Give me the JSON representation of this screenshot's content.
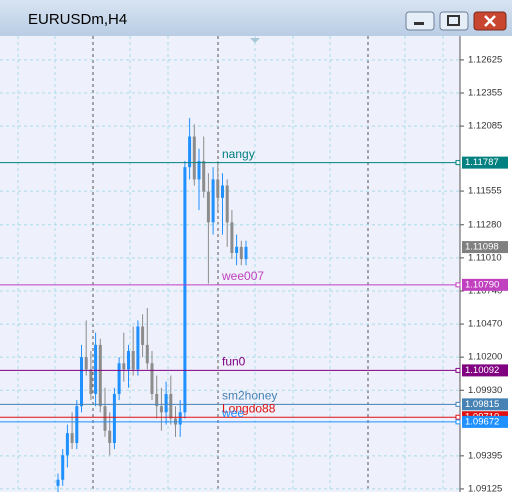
{
  "window": {
    "title": "EURUSDm,H4"
  },
  "chart_data": {
    "type": "candlestick",
    "ylim": [
      1.091,
      1.1282
    ],
    "yticks": [
      1.12625,
      1.12355,
      1.12085,
      1.11555,
      {
        "value": 1.1128,
        "label": "1.11280"
      },
      {
        "value": 1.1101,
        "label": "1.11010"
      },
      {
        "value": 1.1074,
        "label": "1.10740"
      },
      {
        "value": 1.1047,
        "label": "1.10470"
      },
      {
        "value": 1.102,
        "label": "1.10200"
      },
      {
        "value": 1.0993,
        "label": "1.09930"
      },
      1.09395,
      1.09125
    ],
    "grid": true,
    "up_color": "#1e90ff",
    "down_color": "#8c8c8c",
    "open": [
      1.0915,
      1.092,
      1.094,
      1.0958,
      1.095,
      1.098,
      1.102,
      1.101,
      1.099,
      1.103,
      1.098,
      1.096,
      1.095,
      1.099,
      1.1015,
      1.101,
      1.1025,
      1.101,
      1.1045,
      1.103,
      1.1015,
      1.099,
      1.098,
      1.0975,
      1.099,
      1.097,
      1.0965,
      1.0975,
      1.1175,
      1.12,
      1.1165,
      1.118,
      1.1155,
      1.113,
      1.1165,
      1.115,
      1.116,
      1.113,
      1.1105,
      1.111,
      1.11
    ],
    "high": [
      1.0925,
      1.0945,
      1.0965,
      1.0975,
      1.0985,
      1.103,
      1.105,
      1.1025,
      1.104,
      1.1035,
      1.0995,
      1.0975,
      1.0995,
      1.102,
      1.104,
      1.103,
      1.1045,
      1.105,
      1.1055,
      1.106,
      1.1025,
      1.1005,
      1.0995,
      1.1,
      1.1005,
      1.098,
      1.0985,
      1.118,
      1.1215,
      1.121,
      1.119,
      1.12,
      1.117,
      1.1175,
      1.118,
      1.117,
      1.1165,
      1.114,
      1.112,
      1.1115,
      1.1115
    ],
    "low": [
      1.0905,
      1.0915,
      1.093,
      1.0945,
      1.0945,
      1.0975,
      1.1005,
      1.0985,
      1.098,
      1.0975,
      1.0955,
      1.094,
      1.0945,
      1.0985,
      1.1,
      1.0995,
      1.1005,
      1.1005,
      1.102,
      1.101,
      1.0985,
      1.097,
      1.096,
      1.0965,
      1.0965,
      1.0955,
      1.0955,
      1.097,
      1.1165,
      1.116,
      1.114,
      1.115,
      1.108,
      1.112,
      1.114,
      1.112,
      1.111,
      1.11,
      1.1095,
      1.1095,
      1.1095
    ],
    "close": [
      1.092,
      1.094,
      1.0958,
      1.095,
      1.098,
      1.102,
      1.101,
      1.099,
      1.103,
      1.098,
      1.096,
      1.095,
      1.099,
      1.1015,
      1.101,
      1.1025,
      1.101,
      1.1045,
      1.103,
      1.1015,
      1.099,
      1.098,
      1.0975,
      1.099,
      1.097,
      1.0965,
      1.0975,
      1.1175,
      1.12,
      1.1165,
      1.118,
      1.1155,
      1.113,
      1.1165,
      1.115,
      1.116,
      1.113,
      1.1105,
      1.111,
      1.11,
      1.111
    ],
    "current_price": 1.11098,
    "lines": [
      {
        "name": "nangy",
        "value": 1.11787,
        "color": "#008080"
      },
      {
        "name": "wee007",
        "value": 1.1079,
        "label": "1.10790",
        "color": "#c040c0"
      },
      {
        "name": "fun0",
        "value": 1.10092,
        "color": "#800080"
      },
      {
        "name": "sm2honey",
        "value": 1.09815,
        "color": "#4682b4"
      },
      {
        "name": "Longdo88",
        "value": 1.0971,
        "label": "1.09710",
        "color": "#e01010"
      },
      {
        "name": "wee",
        "value": 1.09672,
        "color": "#1e90ff"
      }
    ]
  }
}
